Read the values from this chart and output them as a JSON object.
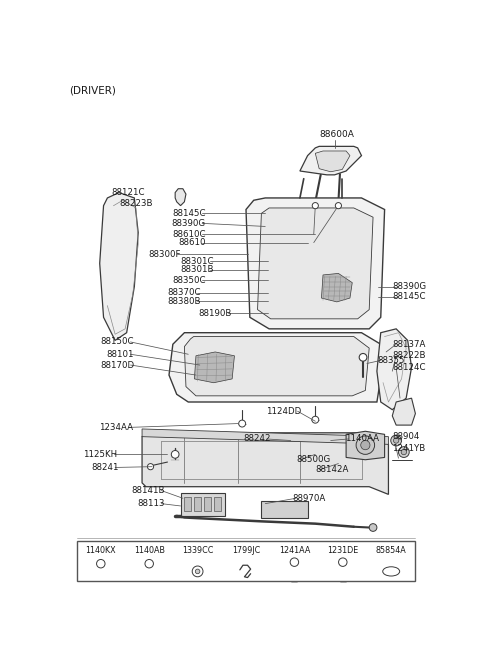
{
  "title": "(DRIVER)",
  "bg_color": "#ffffff",
  "lc": "#3a3a3a",
  "tc": "#1a1a1a",
  "footer_labels": [
    "1140KX",
    "1140AB",
    "1339CC",
    "1799JC",
    "1241AA",
    "1231DE",
    "85854A"
  ]
}
